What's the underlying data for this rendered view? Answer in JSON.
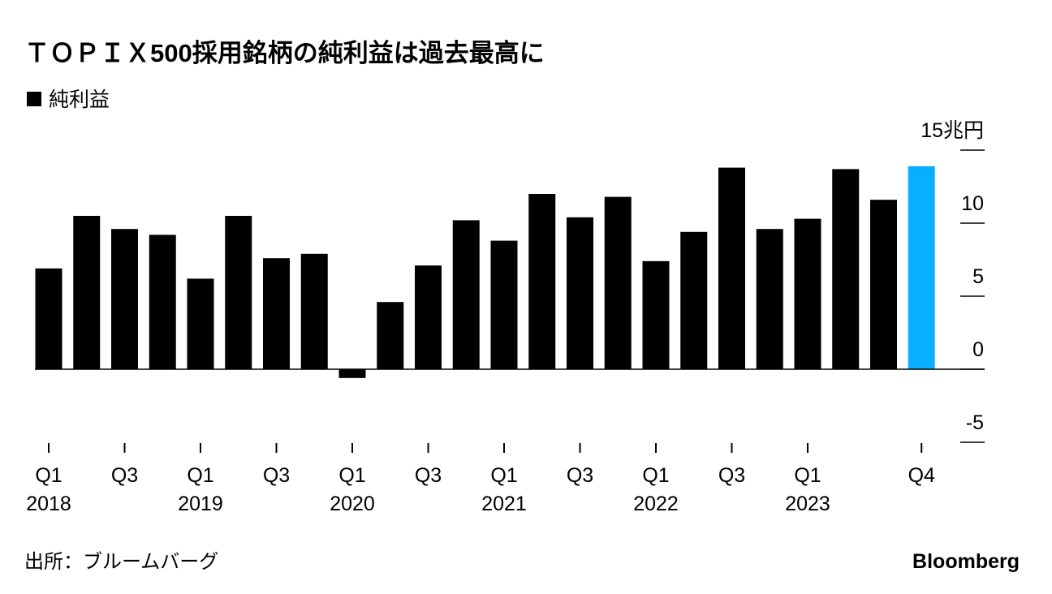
{
  "chart_data": {
    "type": "bar",
    "title": "ＴＯＰＩＸ500採用銘柄の純利益は過去最高に",
    "series": [
      {
        "name": "純利益",
        "color": "#000000",
        "values": [
          6.9,
          10.5,
          9.6,
          9.2,
          6.2,
          10.5,
          7.6,
          7.9,
          -0.6,
          4.6,
          7.1,
          10.2,
          8.8,
          12.0,
          10.4,
          11.8,
          7.4,
          9.4,
          13.8,
          9.6,
          10.3,
          13.7,
          11.6,
          13.9
        ],
        "colors": [
          "#000000",
          "#000000",
          "#000000",
          "#000000",
          "#000000",
          "#000000",
          "#000000",
          "#000000",
          "#000000",
          "#000000",
          "#000000",
          "#000000",
          "#000000",
          "#000000",
          "#000000",
          "#000000",
          "#000000",
          "#000000",
          "#000000",
          "#000000",
          "#000000",
          "#000000",
          "#000000",
          "#0aaeff"
        ]
      }
    ],
    "categories": [
      "Q1",
      null,
      "Q3",
      null,
      "Q1",
      null,
      "Q3",
      null,
      "Q1",
      null,
      "Q3",
      null,
      "Q1",
      null,
      "Q3",
      null,
      "Q1",
      null,
      "Q3",
      null,
      "Q1",
      null,
      null,
      "Q4"
    ],
    "category_years": [
      "2018",
      null,
      null,
      null,
      "2019",
      null,
      null,
      null,
      "2020",
      null,
      null,
      null,
      "2021",
      null,
      null,
      null,
      "2022",
      null,
      null,
      null,
      "2023",
      null,
      null,
      null
    ],
    "ylim": [
      -5,
      15
    ],
    "yticks": [
      -5,
      0,
      5,
      10,
      {
        "value": 15,
        "label": "15兆円"
      }
    ],
    "source": "出所：ブルームバーグ",
    "brand": "Bloomberg"
  }
}
